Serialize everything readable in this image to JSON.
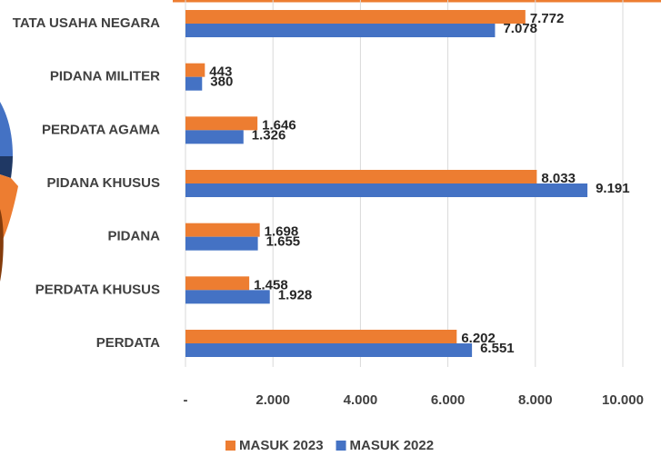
{
  "chart_data": {
    "type": "bar",
    "orientation": "horizontal",
    "categories": [
      "TATA USAHA NEGARA",
      "PIDANA MILITER",
      "PERDATA AGAMA",
      "PIDANA KHUSUS",
      "PIDANA",
      "PERDATA KHUSUS",
      "PERDATA"
    ],
    "series": [
      {
        "name": "MASUK 2023",
        "color": "#ed7d31",
        "values": [
          7772,
          443,
          1646,
          8033,
          1698,
          1458,
          6202
        ],
        "value_labels": [
          "7.772",
          "443",
          "1.646",
          "8.033",
          "1.698",
          "1.458",
          "6.202"
        ]
      },
      {
        "name": "MASUK 2022",
        "color": "#4472c4",
        "values": [
          7078,
          380,
          1326,
          9191,
          1655,
          1928,
          6551
        ],
        "value_labels": [
          "7.078",
          "380",
          "1.326",
          "9.191",
          "1.655",
          "1.928",
          "6.551"
        ]
      }
    ],
    "xlim": [
      0,
      10000
    ],
    "xticks": [
      {
        "value": 0,
        "label": "-"
      },
      {
        "value": 2000,
        "label": "2.000"
      },
      {
        "value": 4000,
        "label": "4.000"
      },
      {
        "value": 6000,
        "label": "6.000"
      },
      {
        "value": 8000,
        "label": "8.000"
      },
      {
        "value": 10000,
        "label": "10.000"
      }
    ],
    "grid": true,
    "legend": "bottom"
  }
}
